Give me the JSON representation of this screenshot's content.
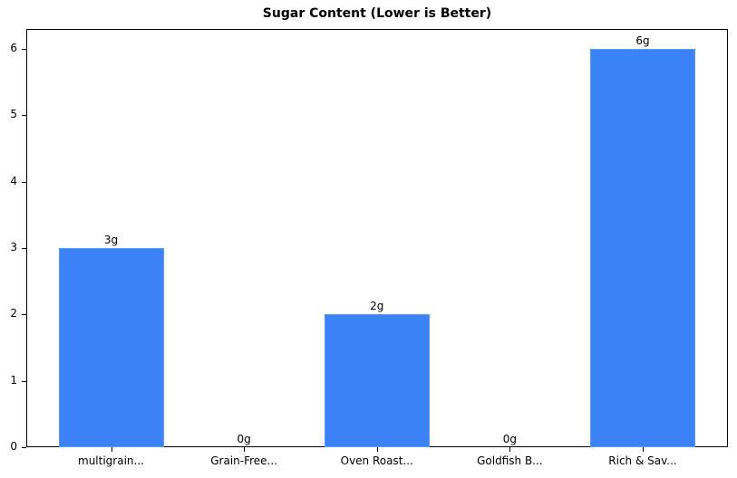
{
  "chart_data": {
    "type": "bar",
    "title": "Sugar Content (Lower is Better)",
    "xlabel": "",
    "ylabel": "",
    "categories": [
      "multigrain...",
      "Grain-Free...",
      "Oven Roast...",
      "Goldfish B...",
      "Rich & Sav..."
    ],
    "values": [
      3,
      0,
      2,
      0,
      6
    ],
    "data_labels": [
      "3g",
      "0g",
      "2g",
      "0g",
      "6g"
    ],
    "ylim": [
      0,
      6.3
    ],
    "yticks": [
      0,
      1,
      2,
      3,
      4,
      5,
      6
    ],
    "grid": false,
    "legend": null,
    "bar_color": "#3b82f6"
  }
}
